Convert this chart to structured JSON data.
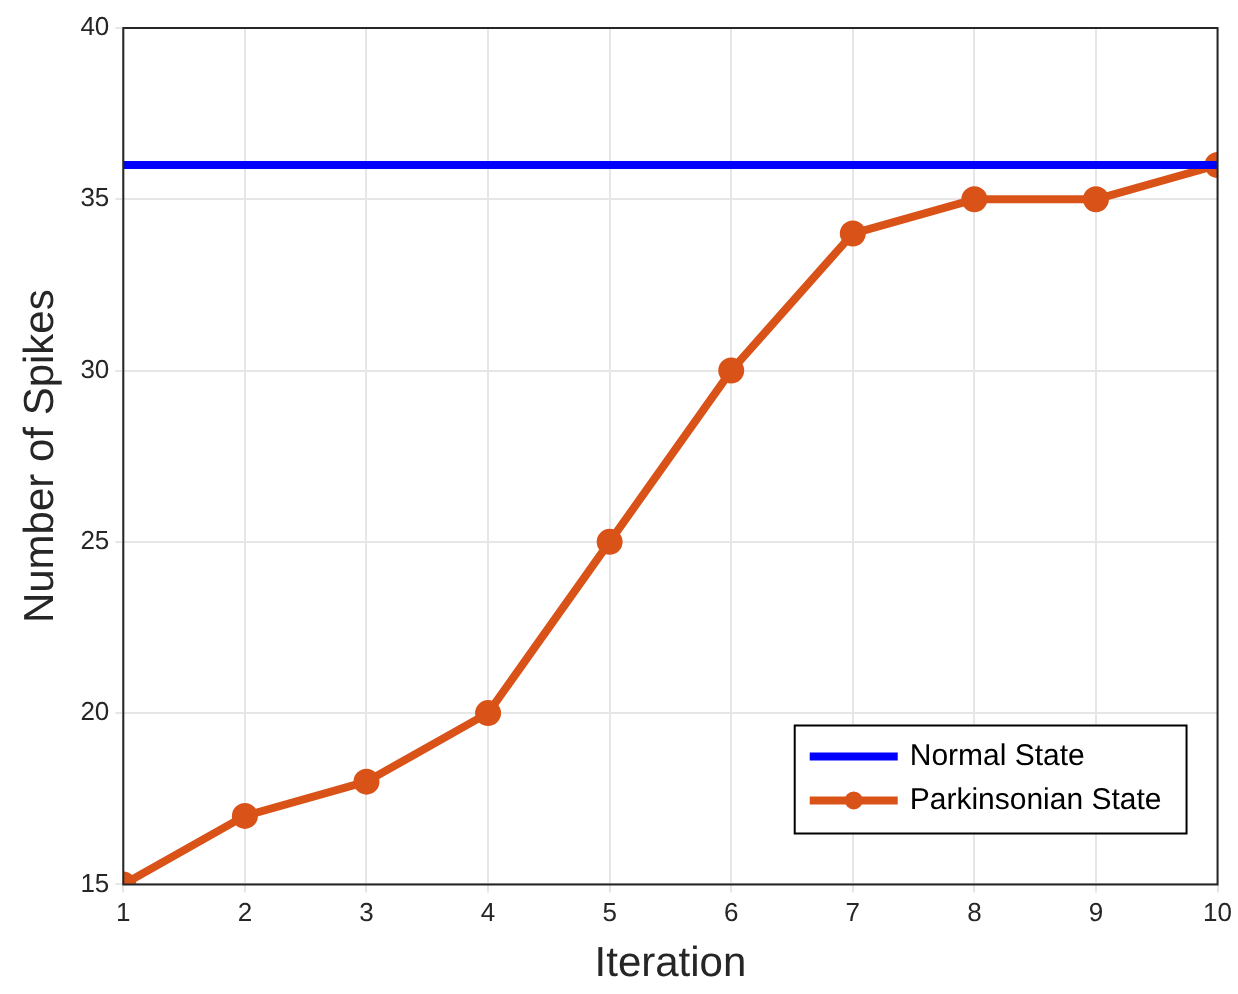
{
  "chart_data": {
    "type": "line",
    "xlabel": "Iteration",
    "ylabel": "Number of Spikes",
    "x": [
      1,
      2,
      3,
      4,
      5,
      6,
      7,
      8,
      9,
      10
    ],
    "series": [
      {
        "name": "Normal State",
        "color": "#0000ff",
        "values": [
          36,
          36,
          36,
          36,
          36,
          36,
          36,
          36,
          36,
          36
        ],
        "marker": "none"
      },
      {
        "name": "Parkinsonian State",
        "color": "#d95319",
        "values": [
          15,
          17,
          18,
          20,
          25,
          30,
          34,
          35,
          35,
          36
        ],
        "marker": "circle"
      }
    ],
    "xlim": [
      1,
      10
    ],
    "xticks": [
      1,
      2,
      3,
      4,
      5,
      6,
      7,
      8,
      9,
      10
    ],
    "ylim": [
      15,
      40
    ],
    "yticks": [
      15,
      20,
      25,
      30,
      35,
      40
    ],
    "grid": true,
    "legend": "bottom right",
    "line_style": "solid"
  }
}
